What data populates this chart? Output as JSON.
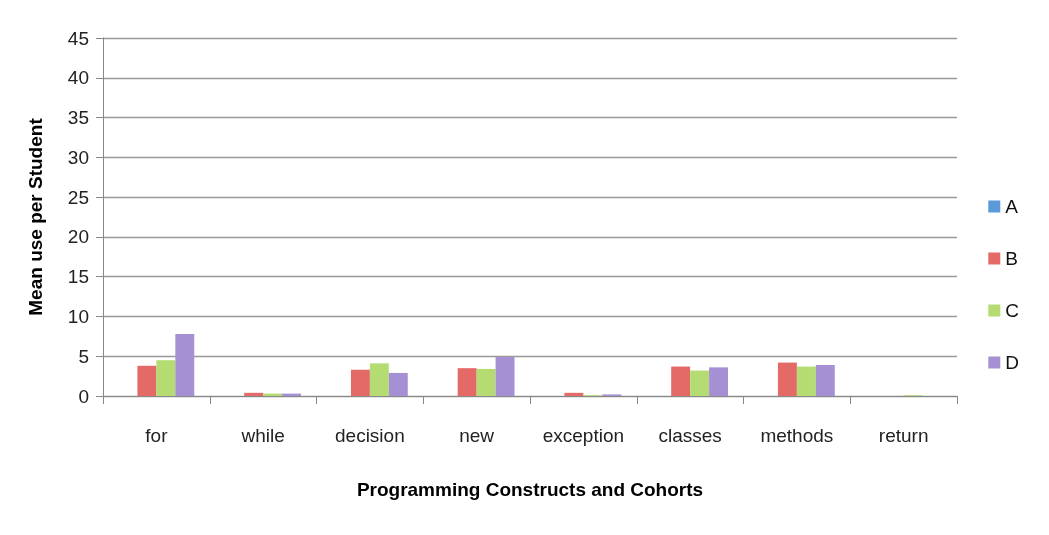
{
  "chart_data": {
    "type": "bar",
    "xlabel": "Programming Constructs and Cohorts",
    "ylabel": "Mean use per Student",
    "categories": [
      "for",
      "while",
      "decision",
      "new",
      "exception",
      "classes",
      "methods",
      "return"
    ],
    "series": [
      {
        "name": "A",
        "color": "#5b9ad9",
        "values": [
          0,
          0,
          0,
          0,
          0,
          0,
          0,
          0
        ]
      },
      {
        "name": "B",
        "color": "#e46a68",
        "values": [
          3.8,
          0.4,
          3.3,
          3.5,
          0.4,
          3.7,
          4.2,
          0
        ]
      },
      {
        "name": "C",
        "color": "#b4dc72",
        "values": [
          4.5,
          0.3,
          4.1,
          3.4,
          0.1,
          3.2,
          3.7,
          0.1
        ]
      },
      {
        "name": "D",
        "color": "#a590d3",
        "values": [
          7.8,
          0.3,
          2.9,
          4.9,
          0.2,
          3.6,
          3.9,
          0
        ]
      }
    ],
    "ylim": [
      0,
      45
    ],
    "yticks": [
      0,
      5,
      10,
      15,
      20,
      25,
      30,
      35,
      40,
      45
    ],
    "grid": "y",
    "legend": "right"
  }
}
